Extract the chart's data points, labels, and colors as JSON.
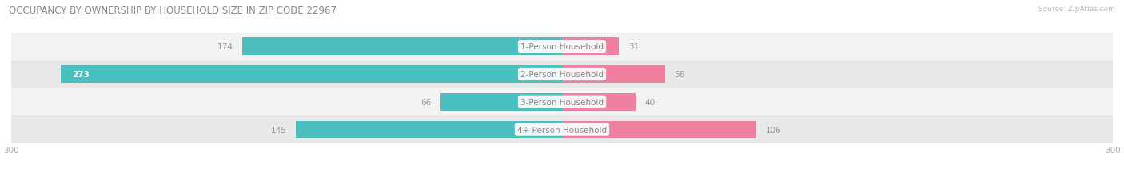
{
  "title": "OCCUPANCY BY OWNERSHIP BY HOUSEHOLD SIZE IN ZIP CODE 22967",
  "source": "Source: ZipAtlas.com",
  "categories": [
    "1-Person Household",
    "2-Person Household",
    "3-Person Household",
    "4+ Person Household"
  ],
  "owner_values": [
    174,
    273,
    66,
    145
  ],
  "renter_values": [
    31,
    56,
    40,
    106
  ],
  "owner_color": "#4BBFBF",
  "renter_color": "#F080A0",
  "row_bg_colors": [
    "#F2F2F2",
    "#E8E8E8",
    "#F2F2F2",
    "#E8E8E8"
  ],
  "axis_max": 300,
  "bar_height": 0.62,
  "figsize": [
    14.06,
    2.32
  ],
  "dpi": 100,
  "title_fontsize": 8.5,
  "legend_fontsize": 7.5,
  "value_fontsize": 7.5,
  "category_fontsize": 7.5,
  "axis_label_fontsize": 7.5
}
